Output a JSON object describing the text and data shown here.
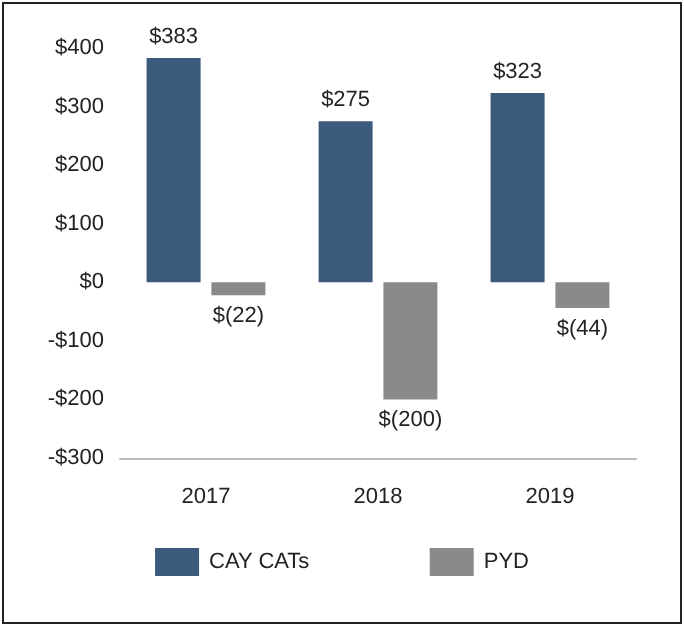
{
  "chart_data": {
    "type": "bar",
    "categories": [
      "2017",
      "2018",
      "2019"
    ],
    "series": [
      {
        "name": "CAY CATs",
        "color": "#3c5a7c",
        "values": [
          383,
          275,
          323
        ],
        "value_labels": [
          "$383",
          "$275",
          "$323"
        ]
      },
      {
        "name": "PYD",
        "color": "#8a8a8a",
        "values": [
          -22,
          -200,
          -44
        ],
        "value_labels": [
          "$(22)",
          "$(200)",
          "$(44)"
        ]
      }
    ],
    "ylim": [
      -300,
      400
    ],
    "yticks": [
      {
        "value": -300,
        "label": "-$300"
      },
      {
        "value": -200,
        "label": "-$200"
      },
      {
        "value": -100,
        "label": "-$100"
      },
      {
        "value": 0,
        "label": "$0"
      },
      {
        "value": 100,
        "label": "$100"
      },
      {
        "value": 200,
        "label": "$200"
      },
      {
        "value": 300,
        "label": "$300"
      },
      {
        "value": 400,
        "label": "$400"
      }
    ],
    "grid": false,
    "legend": "bottom"
  }
}
